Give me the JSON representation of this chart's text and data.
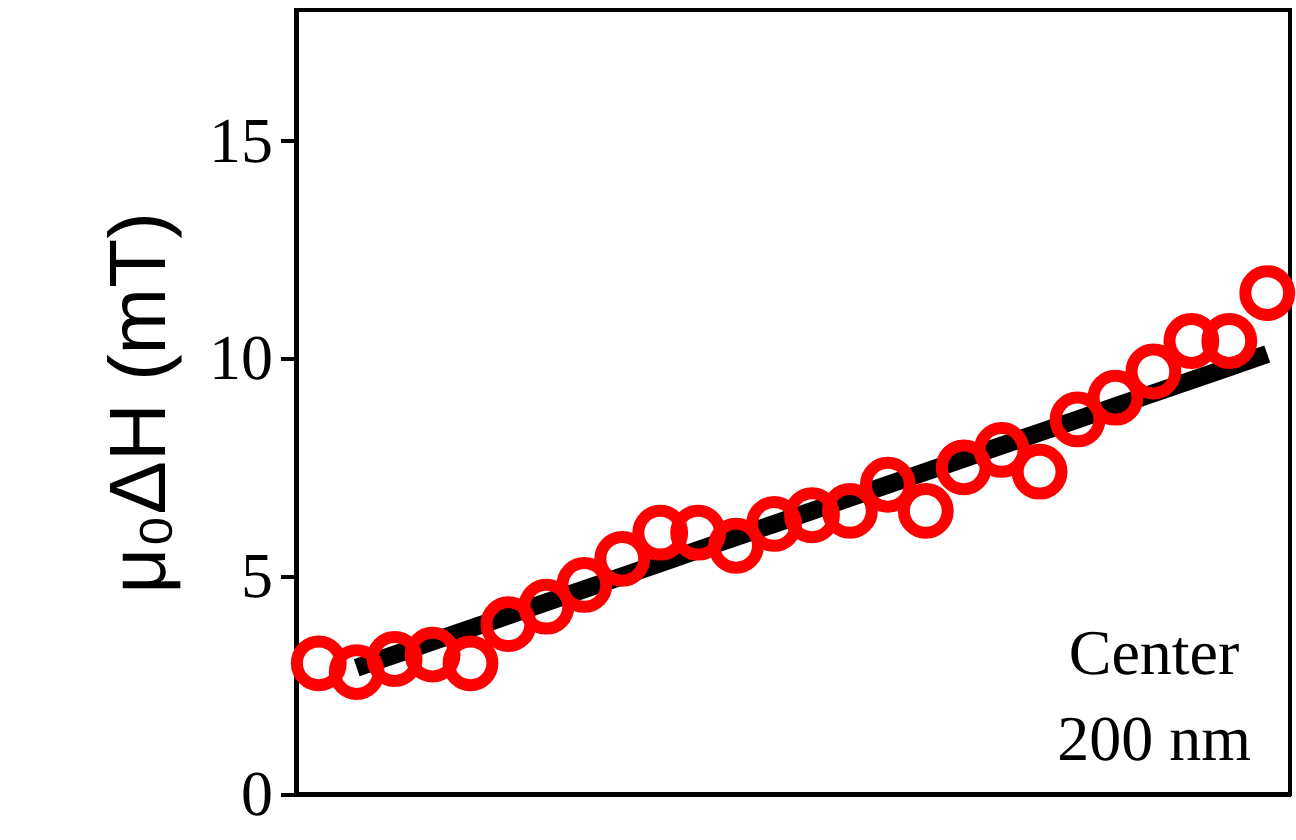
{
  "chart_data": {
    "type": "scatter",
    "ylabel": "μ₀ΔH (mT)",
    "ylim": [
      0,
      18
    ],
    "yticks": [
      0,
      5,
      10,
      15
    ],
    "tick_labels": "y",
    "grid": false,
    "marker": "circle",
    "annotations": [
      "Center",
      "200 nm"
    ],
    "categories": [
      null,
      null,
      null,
      null,
      null,
      null,
      null,
      null,
      null,
      null,
      null,
      null,
      null,
      null,
      null,
      null,
      null,
      null,
      null,
      null,
      null,
      null,
      null,
      null,
      null,
      null
    ],
    "series": [
      {
        "type": "line",
        "color": "#000000",
        "marker": "none",
        "values": [
          null,
          2.9,
          3.2,
          3.5,
          3.8,
          4.1,
          4.4,
          4.7,
          5.0,
          5.3,
          5.6,
          5.9,
          6.2,
          6.5,
          6.8,
          7.1,
          7.4,
          7.7,
          8.0,
          8.3,
          8.6,
          8.9,
          9.2,
          9.5,
          9.8,
          10.1
        ]
      },
      {
        "color": "#ff0000",
        "values": [
          3.0,
          2.8,
          3.1,
          3.2,
          3.0,
          3.9,
          4.3,
          4.8,
          5.4,
          6.0,
          6.0,
          5.7,
          6.2,
          6.4,
          6.5,
          7.1,
          6.5,
          7.5,
          7.9,
          7.4,
          8.6,
          9.1,
          9.7,
          10.4,
          10.4,
          11.5
        ]
      }
    ]
  }
}
